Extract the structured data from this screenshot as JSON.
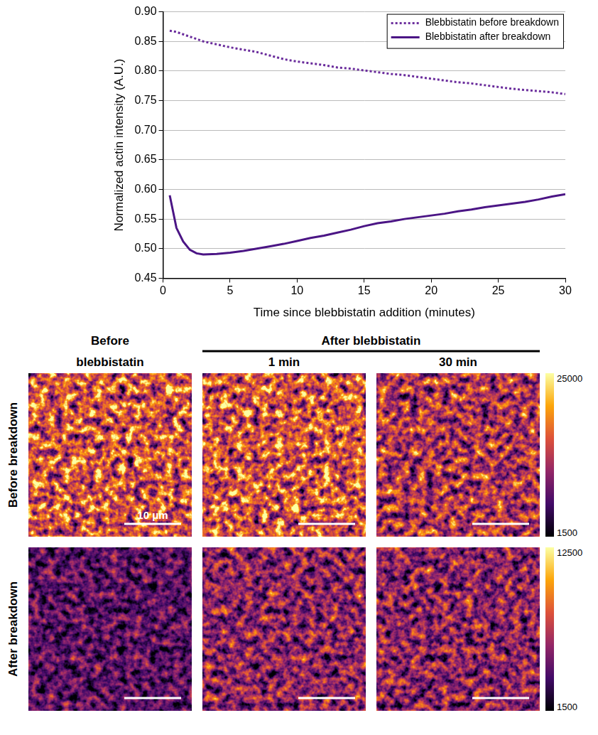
{
  "chart_data": {
    "type": "line",
    "x_label": "Time since blebbistatin addition (minutes)",
    "y_label": "Normalized actin intensity (A.U.)",
    "x": [
      0.5,
      1,
      1.5,
      2,
      2.5,
      3,
      4,
      5,
      6,
      7,
      8,
      9,
      10,
      11,
      12,
      13,
      14,
      15,
      16,
      17,
      18,
      19,
      20,
      21,
      22,
      23,
      24,
      25,
      26,
      27,
      28,
      29,
      30
    ],
    "series": [
      {
        "name": "Blebbistatin before breakdown",
        "color": "#6a2c9c",
        "line_style": "dotted",
        "values": [
          0.868,
          0.866,
          0.862,
          0.858,
          0.854,
          0.85,
          0.845,
          0.84,
          0.836,
          0.832,
          0.826,
          0.82,
          0.816,
          0.813,
          0.81,
          0.806,
          0.804,
          0.801,
          0.798,
          0.795,
          0.793,
          0.79,
          0.787,
          0.784,
          0.781,
          0.779,
          0.776,
          0.773,
          0.77,
          0.768,
          0.766,
          0.764,
          0.761
        ]
      },
      {
        "name": "Blebbistatin after breakdown",
        "color": "#4b1585",
        "line_style": "solid",
        "values": [
          0.59,
          0.535,
          0.512,
          0.498,
          0.492,
          0.49,
          0.491,
          0.493,
          0.496,
          0.5,
          0.504,
          0.508,
          0.513,
          0.518,
          0.522,
          0.527,
          0.532,
          0.538,
          0.543,
          0.546,
          0.55,
          0.553,
          0.556,
          0.559,
          0.563,
          0.566,
          0.57,
          0.573,
          0.576,
          0.579,
          0.583,
          0.588,
          0.592
        ]
      }
    ],
    "xlim": [
      0,
      30
    ],
    "xticks": [
      0,
      5,
      10,
      15,
      20,
      25,
      30
    ],
    "ylim": [
      0.45,
      0.9
    ],
    "yticks": [
      0.45,
      {
        "value": 0.5,
        "label": "0.50"
      },
      0.55,
      {
        "value": 0.6,
        "label": "0.60"
      },
      0.65,
      {
        "value": 0.7,
        "label": "0.70"
      },
      0.75,
      {
        "value": 0.8,
        "label": "0.80"
      },
      0.85,
      {
        "value": 0.9,
        "label": "0.90"
      }
    ],
    "grid": "y",
    "legend": "top-right"
  },
  "panels": {
    "group_head": "After blebbistatin",
    "column_heads": [
      "Before blebbistatin",
      "1 min",
      "30 min"
    ],
    "row_heads": [
      "Before breakdown",
      "After breakdown"
    ],
    "scale_bar": "10 μm",
    "colorbars": [
      {
        "range": [
          1500,
          25000
        ],
        "ticks": [
          1500,
          25000
        ]
      },
      {
        "range": [
          1500,
          12500
        ],
        "ticks": [
          1500,
          12500
        ]
      }
    ]
  }
}
